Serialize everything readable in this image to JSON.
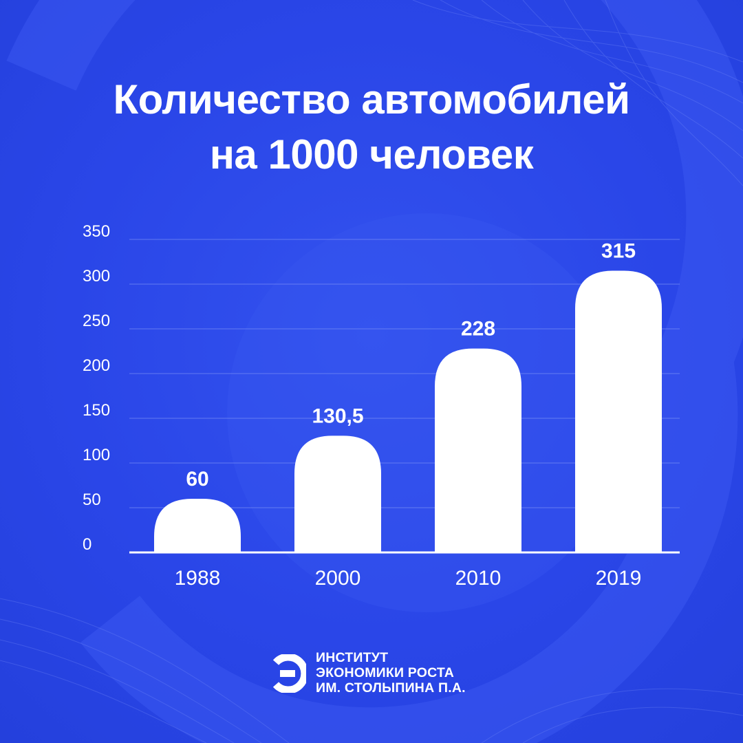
{
  "header": {
    "title_line_1": "Количество автомобилей",
    "title_line_2": "на 1000 человек"
  },
  "chart_data": {
    "type": "bar",
    "title": "Количество автомобилей на 1000 человек",
    "categories": [
      "1988",
      "2000",
      "2010",
      "2019"
    ],
    "values": [
      60,
      130.5,
      228,
      315
    ],
    "value_labels": [
      "60",
      "130,5",
      "228",
      "315"
    ],
    "ylim": [
      0,
      350
    ],
    "yticks": [
      0,
      50,
      100,
      150,
      200,
      250,
      300,
      350
    ],
    "grid": true,
    "legend": "none",
    "colors": {
      "background": "#2a46e8",
      "bar": "#ffffff",
      "grid": "#7a8ff5",
      "text": "#ffffff"
    }
  },
  "footer": {
    "logo_icon": "letter-e-logo-icon",
    "org_name_lines": [
      "ИНСТИТУТ",
      "ЭКОНОМИКИ РОСТА",
      "ИМ. СТОЛЫПИНА П.А."
    ]
  }
}
